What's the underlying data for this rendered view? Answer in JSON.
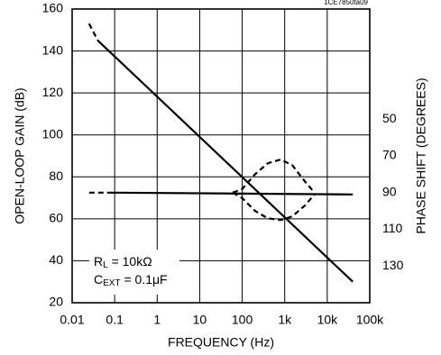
{
  "figure_id": "1CE7850ta09",
  "chart_data": {
    "type": "line",
    "xlabel": "FREQUENCY (Hz)",
    "ylabel": "OPEN-LOOP GAIN (dB)",
    "y2label": "PHASE SHIFT (DEGREES)",
    "x_scale": "log",
    "xlim": [
      0.01,
      100000
    ],
    "ylim": [
      20,
      160
    ],
    "y2lim": [
      150,
      -10
    ],
    "x_ticks": [
      {
        "value": 0.01,
        "label": "0.01"
      },
      {
        "value": 0.1,
        "label": "0.1"
      },
      {
        "value": 1,
        "label": "1"
      },
      {
        "value": 10,
        "label": "10"
      },
      {
        "value": 100,
        "label": "100"
      },
      {
        "value": 1000,
        "label": "1k"
      },
      {
        "value": 10000,
        "label": "10k"
      },
      {
        "value": 100000,
        "label": "100k"
      }
    ],
    "y_ticks": [
      20,
      40,
      60,
      80,
      100,
      120,
      140,
      160
    ],
    "y2_ticks": [
      50,
      70,
      90,
      110,
      130
    ],
    "grid": true,
    "annotation": {
      "rl_main": "R",
      "rl_sub": "L",
      "rl_value": " = 10kΩ",
      "cext_main": "C",
      "cext_sub": "EXT",
      "cext_value": "  = 0.1μF"
    },
    "series": [
      {
        "kind": "gain",
        "axis": "left",
        "dashed": {
          "x": [
            0.025,
            0.04
          ],
          "y": [
            153,
            145
          ]
        },
        "solid": {
          "x": [
            0.04,
            40000
          ],
          "y": [
            145,
            30
          ]
        }
      },
      {
        "kind": "phase",
        "axis": "right",
        "dashed": {
          "x": [
            0.025,
            0.08
          ],
          "y": [
            90,
            90
          ]
        },
        "solid": {
          "x": [
            0.08,
            40000
          ],
          "y": [
            90,
            91
          ]
        }
      },
      {
        "kind": "phase-variation",
        "axis": "right",
        "dashed": {
          "x": [
            60,
            100,
            200,
            400,
            800,
            1500,
            3000,
            5000
          ],
          "y": [
            90,
            88,
            80,
            74,
            72,
            75,
            84,
            90
          ]
        }
      },
      {
        "kind": "phase-variation",
        "axis": "right",
        "dashed": {
          "x": [
            60,
            100,
            200,
            400,
            800,
            1500,
            3000,
            5000
          ],
          "y": [
            90,
            93,
            100,
            104,
            105,
            103,
            97,
            91
          ]
        }
      }
    ]
  }
}
